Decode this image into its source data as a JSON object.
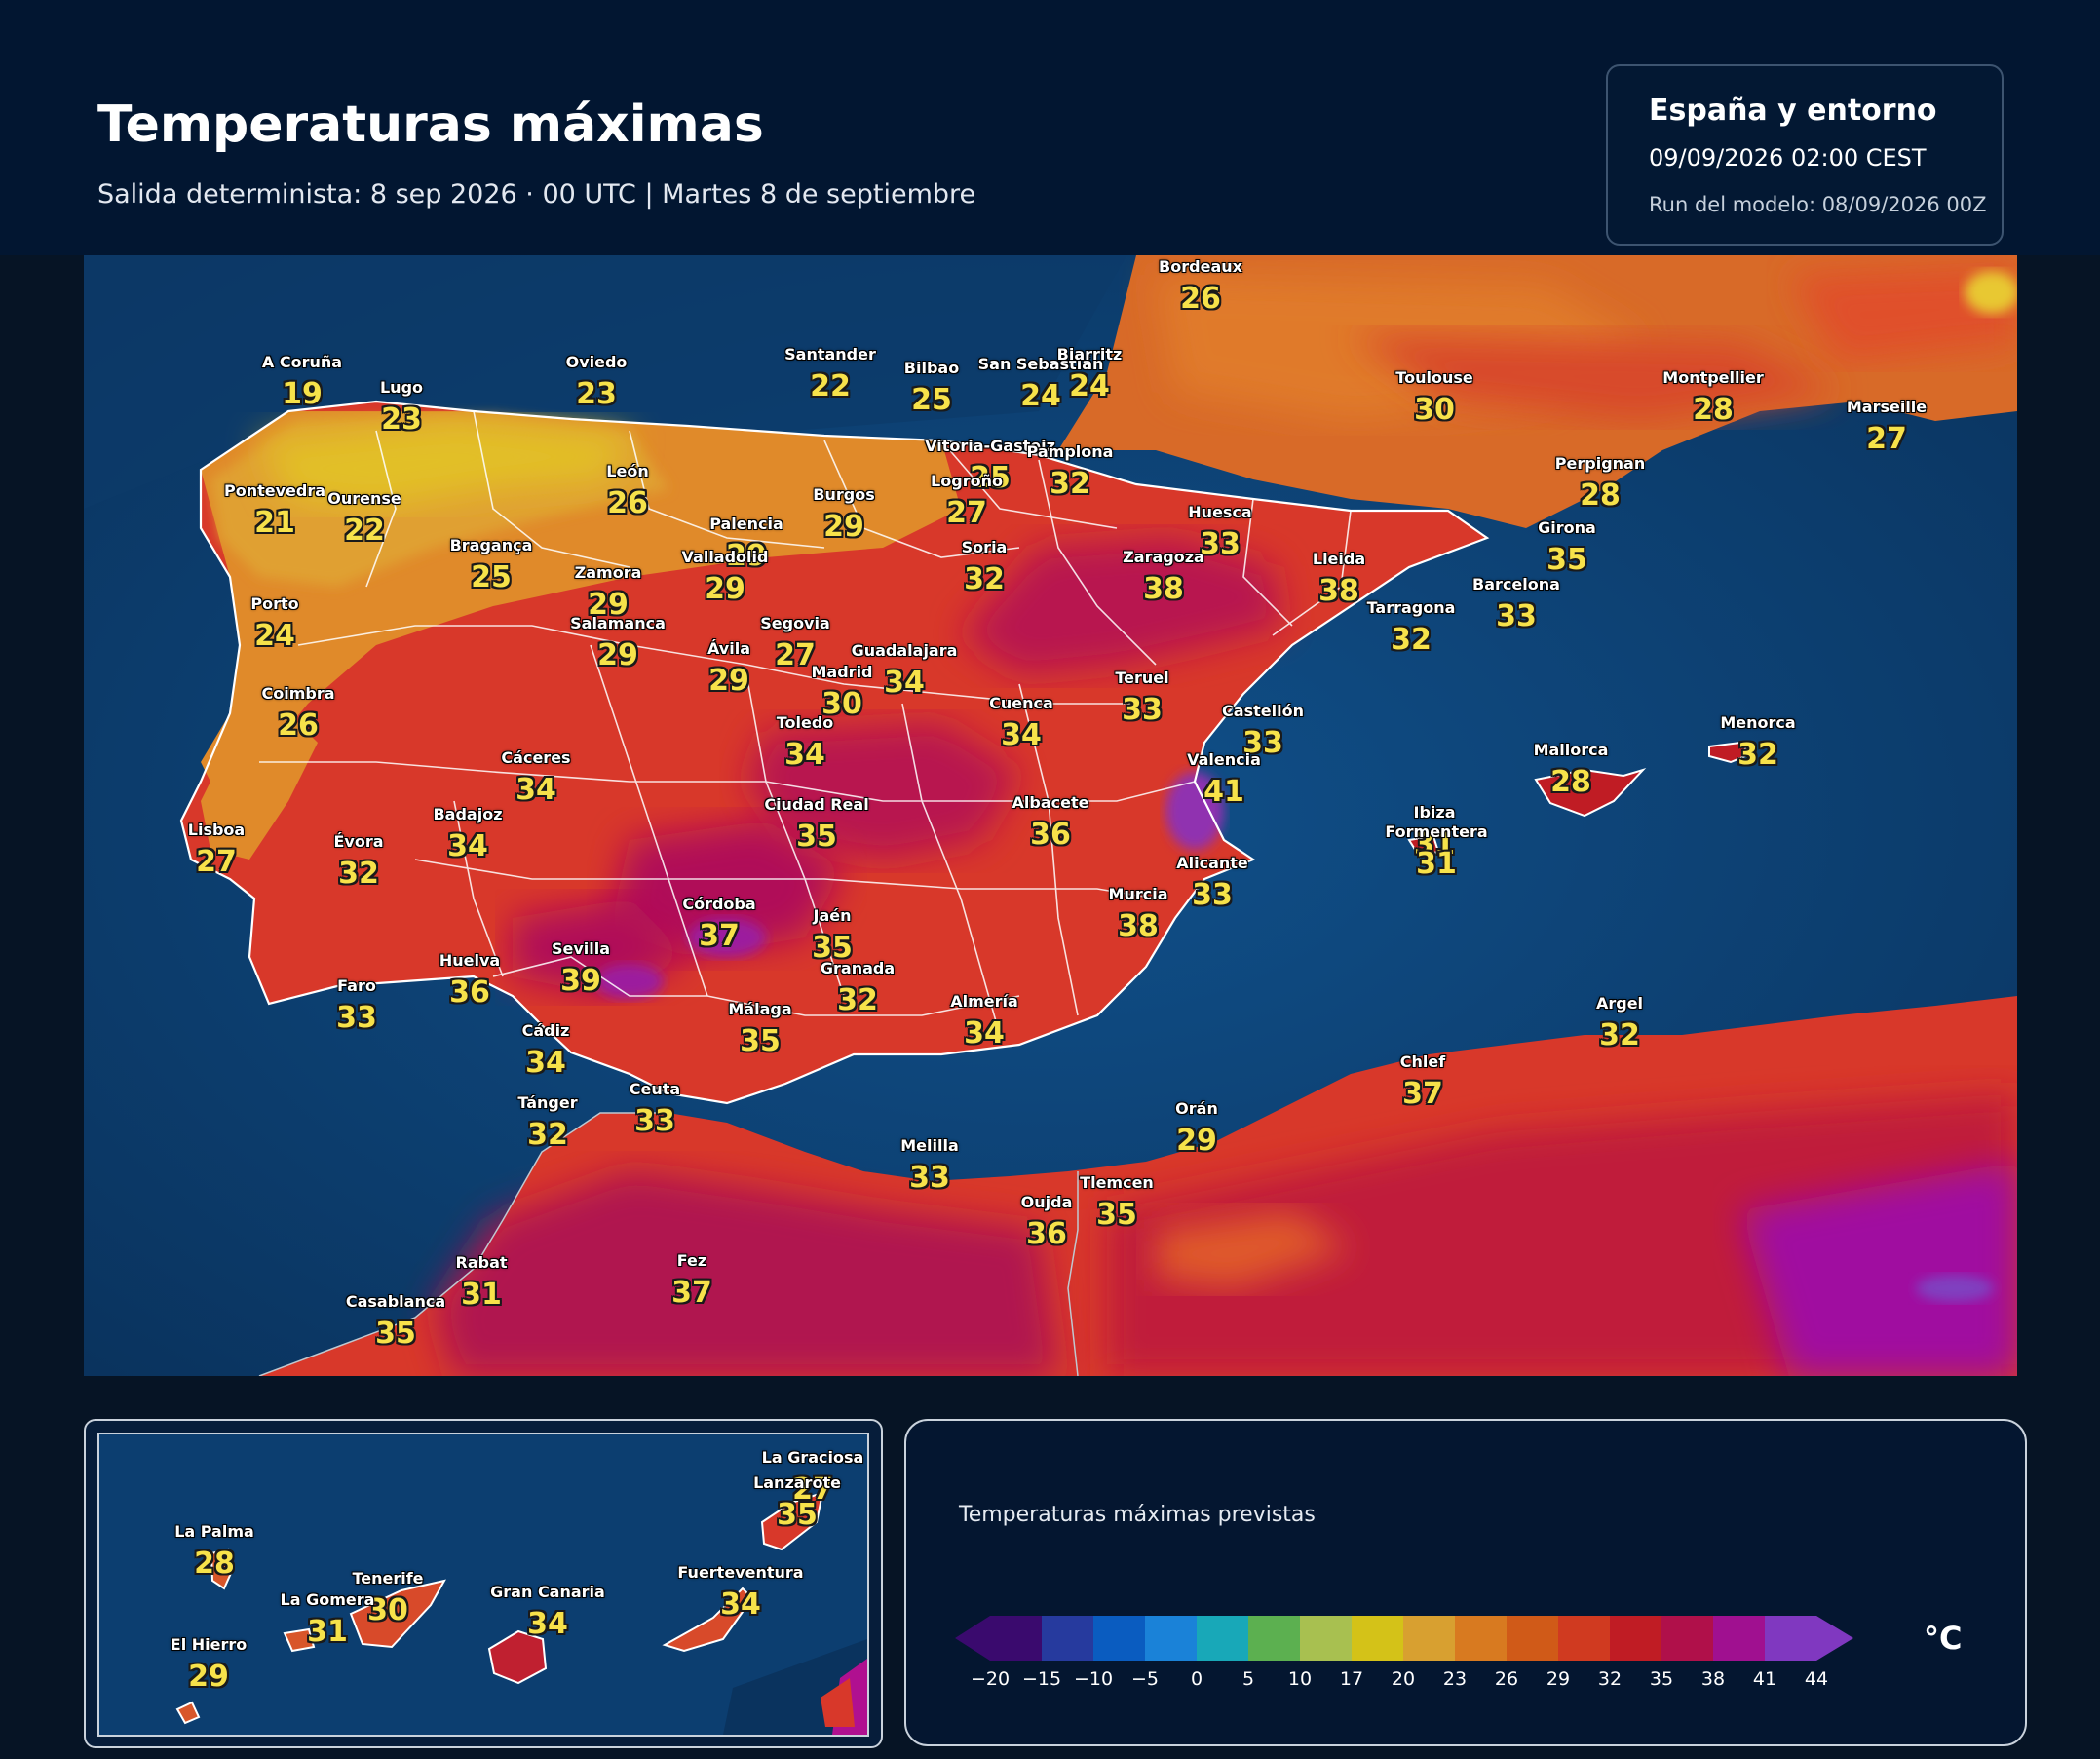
{
  "header": {
    "title": "Temperaturas máximas",
    "subtitle": "Salida determinista: 8 sep 2026 · 00 UTC  |  Martes 8 de septiembre"
  },
  "info": {
    "region": "España y entorno",
    "date": "09/09/2026  02:00 CEST",
    "run": "Run del modelo: 08/09/2026 00Z"
  },
  "cities": [
    {
      "name": "Bordeaux",
      "temp": "26"
    },
    {
      "name": "A Coruña",
      "temp": "19"
    },
    {
      "name": "Lugo",
      "temp": "23"
    },
    {
      "name": "Oviedo",
      "temp": "23"
    },
    {
      "name": "Santander",
      "temp": "22"
    },
    {
      "name": "Bilbao",
      "temp": "25"
    },
    {
      "name": "San Sebastián",
      "temp": "24"
    },
    {
      "name": "Biarritz",
      "temp": "24"
    },
    {
      "name": "Toulouse",
      "temp": "30"
    },
    {
      "name": "Montpellier",
      "temp": "28"
    },
    {
      "name": "Marseille",
      "temp": "27"
    },
    {
      "name": "Vitoria-Gasteiz",
      "temp": "25"
    },
    {
      "name": "Pamplona",
      "temp": "32"
    },
    {
      "name": "Logroño",
      "temp": "27"
    },
    {
      "name": "Pontevedra",
      "temp": "21"
    },
    {
      "name": "Ourense",
      "temp": "22"
    },
    {
      "name": "León",
      "temp": "26"
    },
    {
      "name": "Burgos",
      "temp": "29"
    },
    {
      "name": "Palencia",
      "temp": "29"
    },
    {
      "name": "Soria",
      "temp": "32"
    },
    {
      "name": "Huesca",
      "temp": "33"
    },
    {
      "name": "Perpignan",
      "temp": "28"
    },
    {
      "name": "Girona",
      "temp": "35"
    },
    {
      "name": "Bragança",
      "temp": "25"
    },
    {
      "name": "Valladolid",
      "temp": "29"
    },
    {
      "name": "Zamora",
      "temp": "29"
    },
    {
      "name": "Zaragoza",
      "temp": "38"
    },
    {
      "name": "Lleida",
      "temp": "38"
    },
    {
      "name": "Barcelona",
      "temp": "33"
    },
    {
      "name": "Tarragona",
      "temp": "32"
    },
    {
      "name": "Porto",
      "temp": "24"
    },
    {
      "name": "Salamanca",
      "temp": "29"
    },
    {
      "name": "Segovia",
      "temp": "27"
    },
    {
      "name": "Ávila",
      "temp": "29"
    },
    {
      "name": "Guadalajara",
      "temp": "34"
    },
    {
      "name": "Madrid",
      "temp": "30"
    },
    {
      "name": "Teruel",
      "temp": "33"
    },
    {
      "name": "Coimbra",
      "temp": "26"
    },
    {
      "name": "Toledo",
      "temp": "34"
    },
    {
      "name": "Cuenca",
      "temp": "34"
    },
    {
      "name": "Castellón",
      "temp": "33"
    },
    {
      "name": "Menorca",
      "temp": "32"
    },
    {
      "name": "Cáceres",
      "temp": "34"
    },
    {
      "name": "Valencia",
      "temp": "41"
    },
    {
      "name": "Mallorca",
      "temp": "28"
    },
    {
      "name": "Lisboa",
      "temp": "27"
    },
    {
      "name": "Évora",
      "temp": "32"
    },
    {
      "name": "Badajoz",
      "temp": "34"
    },
    {
      "name": "Ciudad Real",
      "temp": "35"
    },
    {
      "name": "Albacete",
      "temp": "36"
    },
    {
      "name": "Ibiza",
      "temp": "31"
    },
    {
      "name": "Formentera",
      "temp": "31"
    },
    {
      "name": "Alicante",
      "temp": "33"
    },
    {
      "name": "Murcia",
      "temp": "38"
    },
    {
      "name": "Córdoba",
      "temp": "37"
    },
    {
      "name": "Jaén",
      "temp": "35"
    },
    {
      "name": "Huelva",
      "temp": "36"
    },
    {
      "name": "Sevilla",
      "temp": "39"
    },
    {
      "name": "Granada",
      "temp": "32"
    },
    {
      "name": "Faro",
      "temp": "33"
    },
    {
      "name": "Almería",
      "temp": "34"
    },
    {
      "name": "Argel",
      "temp": "32"
    },
    {
      "name": "Málaga",
      "temp": "35"
    },
    {
      "name": "Cádiz",
      "temp": "34"
    },
    {
      "name": "Chlef",
      "temp": "37"
    },
    {
      "name": "Ceuta",
      "temp": "33"
    },
    {
      "name": "Tánger",
      "temp": "32"
    },
    {
      "name": "Orán",
      "temp": "29"
    },
    {
      "name": "Melilla",
      "temp": "33"
    },
    {
      "name": "Oujda",
      "temp": "36"
    },
    {
      "name": "Tlemcen",
      "temp": "35"
    },
    {
      "name": "Rabat",
      "temp": "31"
    },
    {
      "name": "Fez",
      "temp": "37"
    },
    {
      "name": "Casablanca",
      "temp": "35"
    }
  ],
  "canarias": [
    {
      "name": "La Graciosa",
      "temp": "27"
    },
    {
      "name": "Lanzarote",
      "temp": "35"
    },
    {
      "name": "La Palma",
      "temp": "28"
    },
    {
      "name": "Tenerife",
      "temp": "30"
    },
    {
      "name": "La Gomera",
      "temp": "31"
    },
    {
      "name": "Gran Canaria",
      "temp": "34"
    },
    {
      "name": "Fuerteventura",
      "temp": "34"
    },
    {
      "name": "El Hierro",
      "temp": "29"
    }
  ],
  "legend": {
    "title": "Temperaturas máximas previstas",
    "unit": "°C",
    "ticks": [
      "−20",
      "−15",
      "−10",
      "−5",
      "0",
      "5",
      "10",
      "17",
      "20",
      "23",
      "26",
      "29",
      "32",
      "35",
      "38",
      "41",
      "44"
    ],
    "colors": [
      "#3a0a6e",
      "#263a9e",
      "#0a5cc0",
      "#1a82d8",
      "#18a8b8",
      "#5cb050",
      "#a8c050",
      "#d4c218",
      "#d8a030",
      "#d87a20",
      "#d05a18",
      "#d03a20",
      "#c01c24",
      "#b0104a",
      "#a01090",
      "#8038c0"
    ]
  }
}
